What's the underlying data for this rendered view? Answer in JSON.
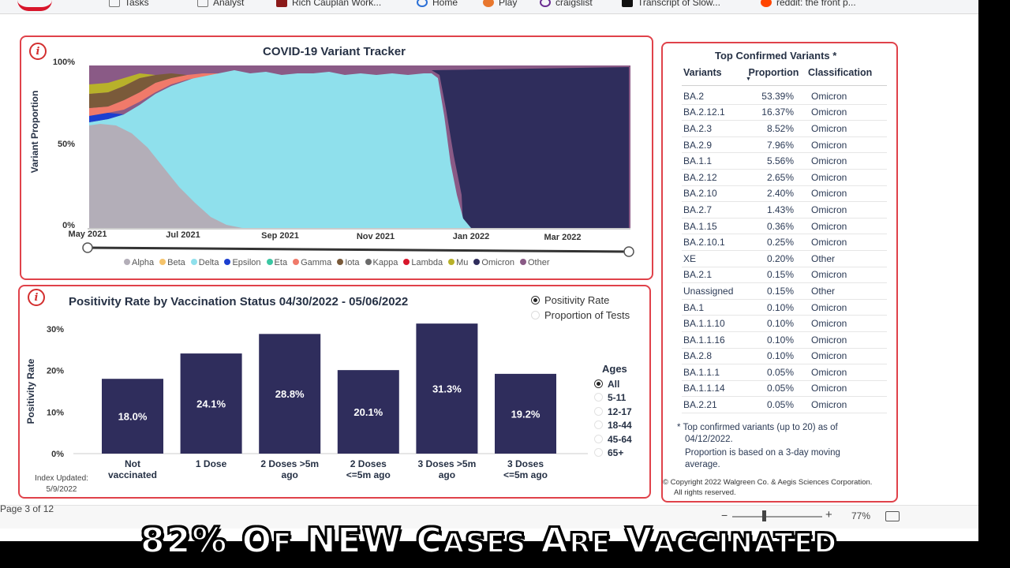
{
  "bookmarks": [
    {
      "label": "Tasks",
      "icon": "doc-icon",
      "color": "#777"
    },
    {
      "label": "Analyst",
      "icon": "doc-icon",
      "color": "#888"
    },
    {
      "label": "Rich Cauplan Work...",
      "icon": "app-icon",
      "color": "#8b1a1a"
    },
    {
      "label": "Home",
      "icon": "globe-icon",
      "color": "#2a6fd6"
    },
    {
      "label": "Play",
      "icon": "play-icon",
      "color": "#e8772e"
    },
    {
      "label": "craigslist",
      "icon": "peace-icon",
      "color": "#6a2c91"
    },
    {
      "label": "Transcript of Slow...",
      "icon": "page-icon",
      "color": "#111"
    },
    {
      "label": "reddit: the front p...",
      "icon": "reddit-icon",
      "color": "#ff4500"
    }
  ],
  "variant_tracker": {
    "title": "COVID-19 Variant Tracker",
    "ylabel": "Variant Proportion",
    "yticks": [
      "100%",
      "50%",
      "0%"
    ],
    "xticks": [
      "May 2021",
      "Jul 2021",
      "Sep 2021",
      "Nov 2021",
      "Jan 2022",
      "Mar 2022"
    ],
    "legend": [
      {
        "name": "Alpha",
        "color": "#b3aeb8"
      },
      {
        "name": "Beta",
        "color": "#f5c36b"
      },
      {
        "name": "Delta",
        "color": "#8fe0ec"
      },
      {
        "name": "Epsilon",
        "color": "#1c3fd0"
      },
      {
        "name": "Eta",
        "color": "#3bc7a3"
      },
      {
        "name": "Gamma",
        "color": "#f07a6a"
      },
      {
        "name": "Iota",
        "color": "#7a5a3a"
      },
      {
        "name": "Kappa",
        "color": "#6b6b6b"
      },
      {
        "name": "Lambda",
        "color": "#d8162b"
      },
      {
        "name": "Mu",
        "color": "#b8b12a"
      },
      {
        "name": "Omicron",
        "color": "#2f2d5c"
      },
      {
        "name": "Other",
        "color": "#8a5a86"
      }
    ]
  },
  "top_variants": {
    "title": "Top Confirmed Variants *",
    "headers": [
      "Variants",
      "Proportion",
      "Classification"
    ],
    "rows": [
      [
        "BA.2",
        "53.39%",
        "Omicron"
      ],
      [
        "BA.2.12.1",
        "16.37%",
        "Omicron"
      ],
      [
        "BA.2.3",
        "8.52%",
        "Omicron"
      ],
      [
        "BA.2.9",
        "7.96%",
        "Omicron"
      ],
      [
        "BA.1.1",
        "5.56%",
        "Omicron"
      ],
      [
        "BA.2.12",
        "2.65%",
        "Omicron"
      ],
      [
        "BA.2.10",
        "2.40%",
        "Omicron"
      ],
      [
        "BA.2.7",
        "1.43%",
        "Omicron"
      ],
      [
        "BA.1.15",
        "0.36%",
        "Omicron"
      ],
      [
        "BA.2.10.1",
        "0.25%",
        "Omicron"
      ],
      [
        "XE",
        "0.20%",
        "Other"
      ],
      [
        "BA.2.1",
        "0.15%",
        "Omicron"
      ],
      [
        "Unassigned",
        "0.15%",
        "Other"
      ],
      [
        "BA.1",
        "0.10%",
        "Omicron"
      ],
      [
        "BA.1.1.10",
        "0.10%",
        "Omicron"
      ],
      [
        "BA.1.1.16",
        "0.10%",
        "Omicron"
      ],
      [
        "BA.2.8",
        "0.10%",
        "Omicron"
      ],
      [
        "BA.1.1.1",
        "0.05%",
        "Omicron"
      ],
      [
        "BA.1.1.14",
        "0.05%",
        "Omicron"
      ],
      [
        "BA.2.21",
        "0.05%",
        "Omicron"
      ]
    ],
    "footnote1": "* Top confirmed variants (up to 20) as of",
    "footnote1b": "04/12/2022.",
    "footnote2": "Proportion is based on a 3-day moving",
    "footnote2b": "average.",
    "copyright1": "© Copyright 2022 Walgreen Co. & Aegis Sciences Corporation.",
    "copyright2": "All rights reserved."
  },
  "positivity": {
    "title": "Positivity Rate by Vaccination Status 04/30/2022 - 05/06/2022",
    "ylabel": "Positivity Rate",
    "radio_options": [
      {
        "label": "Positivity Rate",
        "selected": true
      },
      {
        "label": "Proportion of Tests",
        "selected": false
      }
    ],
    "ages_title": "Ages",
    "ages": [
      {
        "label": "All",
        "selected": true
      },
      {
        "label": "5-11",
        "selected": false
      },
      {
        "label": "12-17",
        "selected": false
      },
      {
        "label": "18-44",
        "selected": false
      },
      {
        "label": "45-64",
        "selected": false
      },
      {
        "label": "65+",
        "selected": false
      }
    ],
    "index_updated": "Index Updated:",
    "index_date": "5/9/2022"
  },
  "chart_data": [
    {
      "type": "bar",
      "title": "Positivity Rate by Vaccination Status 04/30/2022 - 05/06/2022",
      "xlabel": "",
      "ylabel": "Positivity Rate",
      "ylim": [
        0,
        30
      ],
      "yticks": [
        "0%",
        "10%",
        "20%",
        "30%"
      ],
      "categories": [
        [
          "Not",
          "vaccinated"
        ],
        [
          "1 Dose"
        ],
        [
          "2 Doses >5m",
          "ago"
        ],
        [
          "2 Doses",
          "<=5m ago"
        ],
        [
          "3 Doses >5m",
          "ago"
        ],
        [
          "3 Doses",
          "<=5m ago"
        ]
      ],
      "values": [
        18.0,
        24.1,
        28.8,
        20.1,
        31.3,
        19.2
      ],
      "labels": [
        "18.0%",
        "24.1%",
        "28.8%",
        "20.1%",
        "31.3%",
        "19.2%"
      ],
      "bar_color": "#2f2d5c"
    }
  ],
  "statusbar": {
    "page": "Page 3 of 12",
    "zoom": "77%"
  },
  "caption": {
    "w1": "82%",
    "w2a": "O",
    "w2b": "F",
    "w3": "NEW",
    "w4a": "C",
    "w4b": "ASES",
    "w5a": "A",
    "w5b": "RE",
    "w6a": "V",
    "w6b": "ACCINATED"
  }
}
